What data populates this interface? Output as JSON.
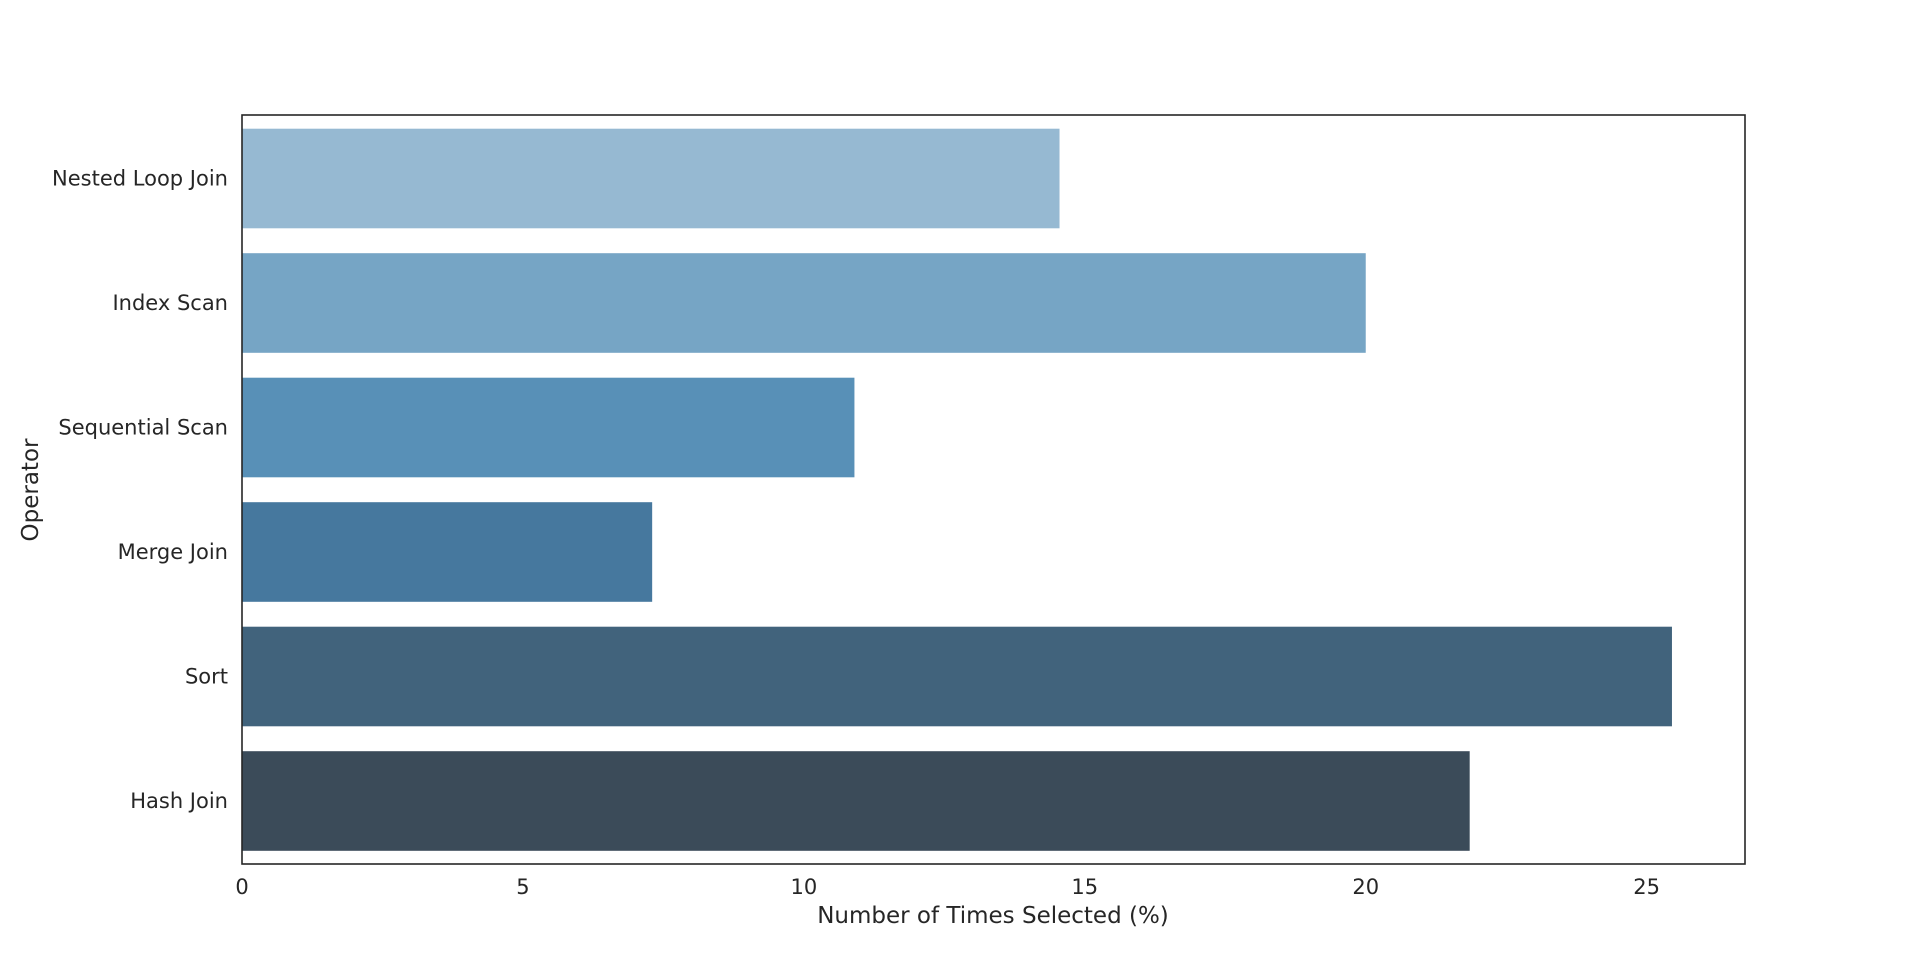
{
  "chart_data": {
    "type": "bar",
    "orientation": "horizontal",
    "categories": [
      "Nested Loop Join",
      "Index Scan",
      "Sequential Scan",
      "Merge Join",
      "Sort",
      "Hash Join"
    ],
    "values": [
      14.55,
      20.0,
      10.9,
      7.3,
      25.45,
      21.85
    ],
    "colors": [
      "#96b9d2",
      "#76a5c5",
      "#5890b7",
      "#46789e",
      "#41637c",
      "#3b4b59"
    ],
    "xlabel": "Number of Times Selected (%)",
    "ylabel": "Operator",
    "xlim": [
      0,
      26.75
    ],
    "xticks": [
      0,
      5,
      10,
      15,
      20,
      25
    ],
    "xtick_labels": [
      "0",
      "5",
      "10",
      "15",
      "20",
      "25"
    ],
    "grid": false,
    "legend": "none"
  }
}
